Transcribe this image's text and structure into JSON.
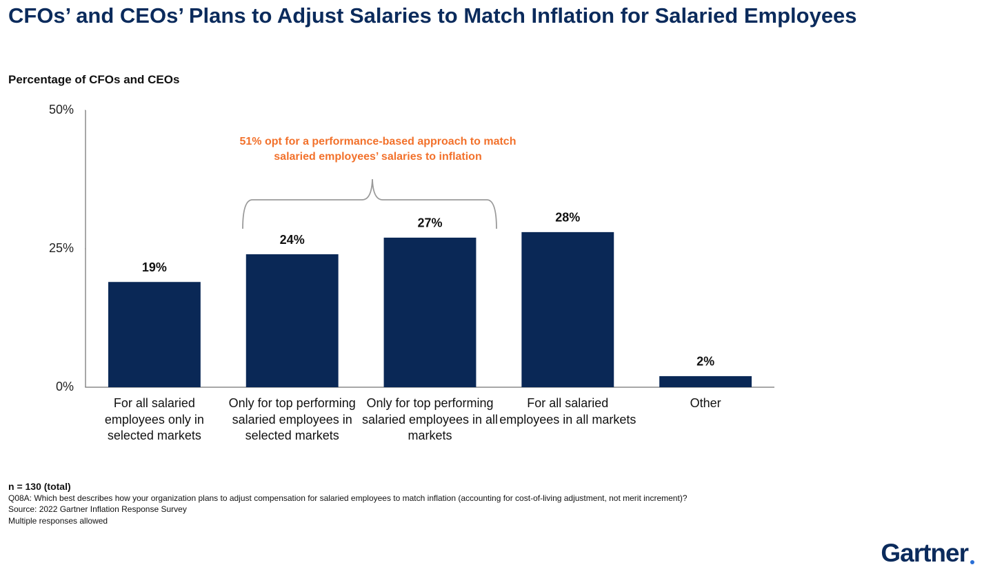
{
  "chart_data": {
    "type": "bar",
    "title": "CFOs’ and CEOs’ Plans to Adjust Salaries to Match Inflation for Salaried Employees",
    "subtitle": "Percentage of CFOs and CEOs",
    "categories": [
      "For all salaried employees only in selected markets",
      "Only for top performing salaried employees in selected markets",
      "Only for top performing salaried employees in all markets",
      "For all salaried employees in all markets",
      "Other"
    ],
    "values": [
      19,
      24,
      27,
      28,
      2
    ],
    "value_labels": [
      "19%",
      "24%",
      "27%",
      "28%",
      "2%"
    ],
    "color": "#0a2856",
    "ylim": [
      0,
      50
    ],
    "yticks": [
      {
        "value": 0,
        "label": "0%"
      },
      {
        "value": 25,
        "label": "25%"
      },
      {
        "value": 50,
        "label": "50%"
      }
    ],
    "annotation": "51% opt for a performance-based approach to match salaried employees’ salaries to inflation",
    "notes": [
      "n = 130 (total)",
      "Q08A: Which best describes how your organization plans to adjust compensation for salaried employees to match inflation (accounting for cost-of-living adjustment, not merit increment)?",
      "Source: 2022 Gartner Inflation Response Survey",
      "Multiple responses allowed"
    ],
    "logo": "Gartner"
  }
}
